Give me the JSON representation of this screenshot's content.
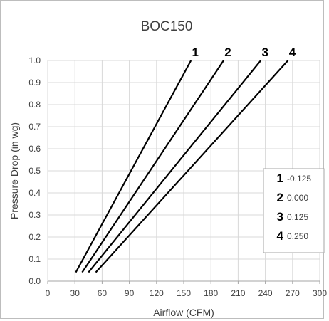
{
  "chart_data": {
    "type": "line",
    "title": "BOC150",
    "xlabel": "Airflow (CFM)",
    "ylabel": "Pressure Drop (in wg)",
    "xlim": [
      0,
      300
    ],
    "ylim": [
      0,
      1.0
    ],
    "x_ticks": [
      "0",
      "30",
      "60",
      "90",
      "120",
      "150",
      "180",
      "210",
      "240",
      "270",
      "300"
    ],
    "y_ticks": [
      "0.0",
      "0.1",
      "0.2",
      "0.3",
      "0.4",
      "0.5",
      "0.6",
      "0.7",
      "0.8",
      "0.9",
      "1.0"
    ],
    "grid": true,
    "series": [
      {
        "name": "1",
        "x": [
          31,
          158
        ],
        "y": [
          0.04,
          1.0
        ]
      },
      {
        "name": "2",
        "x": [
          38,
          194
        ],
        "y": [
          0.04,
          1.0
        ]
      },
      {
        "name": "3",
        "x": [
          45,
          235
        ],
        "y": [
          0.04,
          1.0
        ]
      },
      {
        "name": "4",
        "x": [
          53,
          265
        ],
        "y": [
          0.04,
          1.0
        ]
      }
    ],
    "legend": {
      "placement": "right",
      "entries": [
        {
          "number": "1",
          "value": "-0.125"
        },
        {
          "number": "2",
          "value": "0.000"
        },
        {
          "number": "3",
          "value": "0.125"
        },
        {
          "number": "4",
          "value": "0.250"
        }
      ]
    },
    "colors": {
      "line": "#000000",
      "grid": "#d9d9d9",
      "text": "#404040"
    }
  }
}
